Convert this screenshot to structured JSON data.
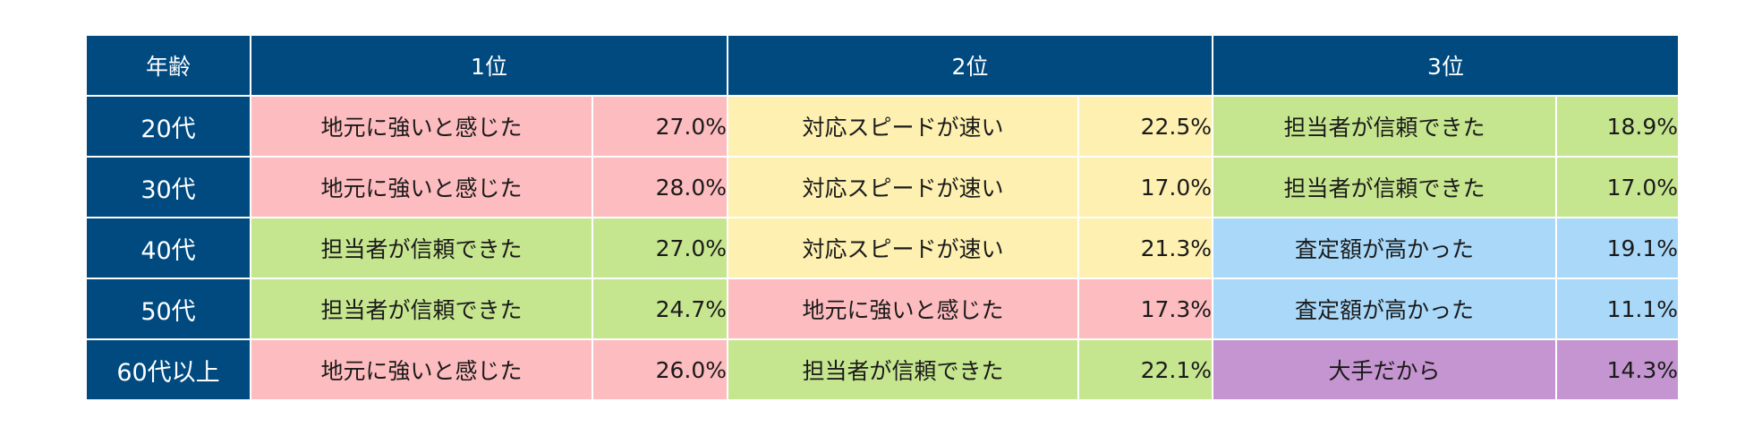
{
  "header": {
    "age": "年齢",
    "rank1": "1位",
    "rank2": "2位",
    "rank3": "3位"
  },
  "colors": {
    "header_bg": "#004a80",
    "地元に強いと感じた": "#fdbcbf",
    "対応スピードが速い": "#fdf0b0",
    "担当者が信頼できた": "#c6e58f",
    "査定額が高かった": "#a9d8f8",
    "大手だから": "#c495d0"
  },
  "rows": [
    {
      "age": "20代",
      "ranks": [
        {
          "reason": "地元に強いと感じた",
          "pct": "27.0%"
        },
        {
          "reason": "対応スピードが速い",
          "pct": "22.5%"
        },
        {
          "reason": "担当者が信頼できた",
          "pct": "18.9%"
        }
      ]
    },
    {
      "age": "30代",
      "ranks": [
        {
          "reason": "地元に強いと感じた",
          "pct": "28.0%"
        },
        {
          "reason": "対応スピードが速い",
          "pct": "17.0%"
        },
        {
          "reason": "担当者が信頼できた",
          "pct": "17.0%"
        }
      ]
    },
    {
      "age": "40代",
      "ranks": [
        {
          "reason": "担当者が信頼できた",
          "pct": "27.0%"
        },
        {
          "reason": "対応スピードが速い",
          "pct": "21.3%"
        },
        {
          "reason": "査定額が高かった",
          "pct": "19.1%"
        }
      ]
    },
    {
      "age": "50代",
      "ranks": [
        {
          "reason": "担当者が信頼できた",
          "pct": "24.7%"
        },
        {
          "reason": "地元に強いと感じた",
          "pct": "17.3%"
        },
        {
          "reason": "査定額が高かった",
          "pct": "11.1%"
        }
      ]
    },
    {
      "age": "60代以上",
      "ranks": [
        {
          "reason": "地元に強いと感じた",
          "pct": "26.0%"
        },
        {
          "reason": "担当者が信頼できた",
          "pct": "22.1%"
        },
        {
          "reason": "大手だから",
          "pct": "14.3%"
        }
      ]
    }
  ]
}
